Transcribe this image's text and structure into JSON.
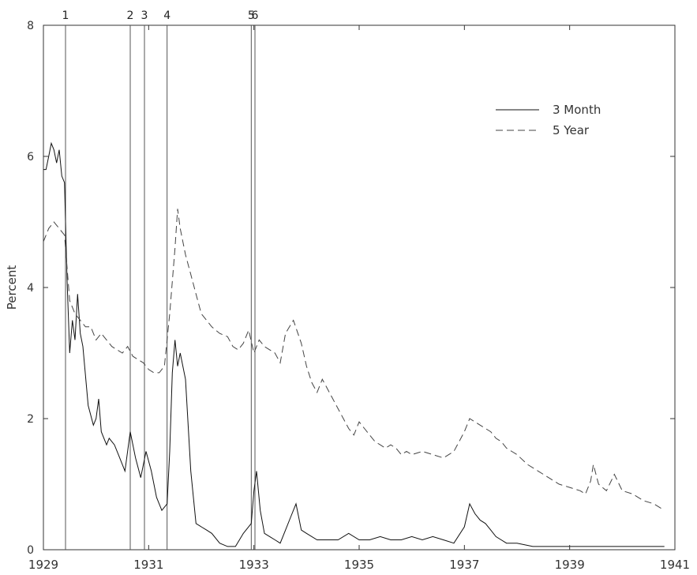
{
  "chart_data": {
    "type": "line",
    "title": "",
    "xlabel": "",
    "ylabel": "Percent",
    "xlim": [
      1929.0,
      1941.0
    ],
    "ylim": [
      0,
      8
    ],
    "x_tick_values": [
      1929,
      1931,
      1933,
      1935,
      1937,
      1939,
      1941
    ],
    "x_tick_labels": [
      "1929",
      "1931",
      "1933",
      "1935",
      "1937",
      "1939",
      "1941"
    ],
    "y_tick_values": [
      0,
      2,
      4,
      6,
      8
    ],
    "y_tick_labels": [
      "0",
      "2",
      "4",
      "6",
      "8"
    ],
    "legend": {
      "placement": "top-right",
      "entries": [
        "3 Month",
        "5 Year"
      ]
    },
    "event_markers": [
      {
        "label": "1",
        "x": 1929.42
      },
      {
        "label": "2",
        "x": 1930.65
      },
      {
        "label": "3",
        "x": 1930.92
      },
      {
        "label": "4",
        "x": 1931.35
      },
      {
        "label": "5",
        "x": 1932.95
      },
      {
        "label": "6",
        "x": 1933.02
      }
    ],
    "series": [
      {
        "name": "3 Month",
        "style": "solid",
        "points": [
          [
            1929.0,
            5.8
          ],
          [
            1929.05,
            5.8
          ],
          [
            1929.1,
            6.0
          ],
          [
            1929.15,
            6.2
          ],
          [
            1929.2,
            6.1
          ],
          [
            1929.25,
            5.9
          ],
          [
            1929.3,
            6.1
          ],
          [
            1929.35,
            5.7
          ],
          [
            1929.4,
            5.6
          ],
          [
            1929.45,
            4.1
          ],
          [
            1929.5,
            3.0
          ],
          [
            1929.55,
            3.5
          ],
          [
            1929.6,
            3.2
          ],
          [
            1929.65,
            3.9
          ],
          [
            1929.7,
            3.3
          ],
          [
            1929.75,
            3.1
          ],
          [
            1929.85,
            2.2
          ],
          [
            1929.95,
            1.9
          ],
          [
            1930.0,
            2.0
          ],
          [
            1930.05,
            2.3
          ],
          [
            1930.1,
            1.8
          ],
          [
            1930.2,
            1.6
          ],
          [
            1930.25,
            1.7
          ],
          [
            1930.35,
            1.6
          ],
          [
            1930.45,
            1.4
          ],
          [
            1930.55,
            1.2
          ],
          [
            1930.65,
            1.8
          ],
          [
            1930.75,
            1.4
          ],
          [
            1930.85,
            1.1
          ],
          [
            1930.95,
            1.5
          ],
          [
            1931.05,
            1.2
          ],
          [
            1931.15,
            0.8
          ],
          [
            1931.25,
            0.6
          ],
          [
            1931.35,
            0.7
          ],
          [
            1931.4,
            1.5
          ],
          [
            1931.45,
            2.7
          ],
          [
            1931.5,
            3.2
          ],
          [
            1931.55,
            2.8
          ],
          [
            1931.6,
            3.0
          ],
          [
            1931.7,
            2.6
          ],
          [
            1931.8,
            1.2
          ],
          [
            1931.9,
            0.4
          ],
          [
            1932.0,
            0.35
          ],
          [
            1932.1,
            0.3
          ],
          [
            1932.2,
            0.25
          ],
          [
            1932.35,
            0.1
          ],
          [
            1932.5,
            0.05
          ],
          [
            1932.65,
            0.05
          ],
          [
            1932.8,
            0.25
          ],
          [
            1932.95,
            0.4
          ],
          [
            1933.0,
            0.9
          ],
          [
            1933.05,
            1.2
          ],
          [
            1933.12,
            0.6
          ],
          [
            1933.2,
            0.25
          ],
          [
            1933.3,
            0.2
          ],
          [
            1933.4,
            0.15
          ],
          [
            1933.5,
            0.1
          ],
          [
            1933.6,
            0.3
          ],
          [
            1933.7,
            0.5
          ],
          [
            1933.8,
            0.7
          ],
          [
            1933.9,
            0.3
          ],
          [
            1934.0,
            0.25
          ],
          [
            1934.2,
            0.15
          ],
          [
            1934.4,
            0.15
          ],
          [
            1934.6,
            0.15
          ],
          [
            1934.8,
            0.25
          ],
          [
            1935.0,
            0.15
          ],
          [
            1935.2,
            0.15
          ],
          [
            1935.4,
            0.2
          ],
          [
            1935.6,
            0.15
          ],
          [
            1935.8,
            0.15
          ],
          [
            1936.0,
            0.2
          ],
          [
            1936.2,
            0.15
          ],
          [
            1936.4,
            0.2
          ],
          [
            1936.6,
            0.15
          ],
          [
            1936.8,
            0.1
          ],
          [
            1937.0,
            0.35
          ],
          [
            1937.1,
            0.7
          ],
          [
            1937.2,
            0.55
          ],
          [
            1937.3,
            0.45
          ],
          [
            1937.4,
            0.4
          ],
          [
            1937.5,
            0.3
          ],
          [
            1937.6,
            0.2
          ],
          [
            1937.8,
            0.1
          ],
          [
            1938.0,
            0.1
          ],
          [
            1938.3,
            0.05
          ],
          [
            1938.6,
            0.05
          ],
          [
            1938.9,
            0.05
          ],
          [
            1939.1,
            0.05
          ],
          [
            1939.4,
            0.05
          ],
          [
            1939.7,
            0.05
          ],
          [
            1940.0,
            0.05
          ],
          [
            1940.4,
            0.05
          ],
          [
            1940.8,
            0.05
          ]
        ]
      },
      {
        "name": "5 Year",
        "style": "dashed",
        "points": [
          [
            1929.0,
            4.7
          ],
          [
            1929.1,
            4.9
          ],
          [
            1929.2,
            5.0
          ],
          [
            1929.3,
            4.9
          ],
          [
            1929.4,
            4.8
          ],
          [
            1929.5,
            3.8
          ],
          [
            1929.6,
            3.6
          ],
          [
            1929.7,
            3.5
          ],
          [
            1929.8,
            3.4
          ],
          [
            1929.9,
            3.4
          ],
          [
            1930.0,
            3.2
          ],
          [
            1930.1,
            3.3
          ],
          [
            1930.2,
            3.2
          ],
          [
            1930.3,
            3.1
          ],
          [
            1930.4,
            3.05
          ],
          [
            1930.5,
            3.0
          ],
          [
            1930.6,
            3.1
          ],
          [
            1930.7,
            2.95
          ],
          [
            1930.8,
            2.9
          ],
          [
            1930.9,
            2.85
          ],
          [
            1931.0,
            2.75
          ],
          [
            1931.1,
            2.7
          ],
          [
            1931.2,
            2.7
          ],
          [
            1931.3,
            2.8
          ],
          [
            1931.4,
            3.6
          ],
          [
            1931.5,
            4.6
          ],
          [
            1931.55,
            5.2
          ],
          [
            1931.6,
            4.9
          ],
          [
            1931.7,
            4.5
          ],
          [
            1931.8,
            4.2
          ],
          [
            1931.9,
            3.9
          ],
          [
            1932.0,
            3.6
          ],
          [
            1932.1,
            3.5
          ],
          [
            1932.2,
            3.4
          ],
          [
            1932.35,
            3.3
          ],
          [
            1932.5,
            3.25
          ],
          [
            1932.6,
            3.1
          ],
          [
            1932.7,
            3.05
          ],
          [
            1932.8,
            3.15
          ],
          [
            1932.9,
            3.35
          ],
          [
            1933.0,
            3.0
          ],
          [
            1933.1,
            3.2
          ],
          [
            1933.2,
            3.1
          ],
          [
            1933.3,
            3.05
          ],
          [
            1933.4,
            3.0
          ],
          [
            1933.5,
            2.85
          ],
          [
            1933.6,
            3.3
          ],
          [
            1933.75,
            3.5
          ],
          [
            1933.9,
            3.15
          ],
          [
            1934.0,
            2.8
          ],
          [
            1934.1,
            2.55
          ],
          [
            1934.2,
            2.4
          ],
          [
            1934.3,
            2.6
          ],
          [
            1934.4,
            2.45
          ],
          [
            1934.5,
            2.3
          ],
          [
            1934.6,
            2.15
          ],
          [
            1934.7,
            2.0
          ],
          [
            1934.8,
            1.85
          ],
          [
            1934.9,
            1.75
          ],
          [
            1935.0,
            1.95
          ],
          [
            1935.1,
            1.85
          ],
          [
            1935.2,
            1.75
          ],
          [
            1935.3,
            1.65
          ],
          [
            1935.4,
            1.6
          ],
          [
            1935.5,
            1.55
          ],
          [
            1935.6,
            1.6
          ],
          [
            1935.7,
            1.55
          ],
          [
            1935.8,
            1.45
          ],
          [
            1935.9,
            1.5
          ],
          [
            1936.0,
            1.45
          ],
          [
            1936.2,
            1.5
          ],
          [
            1936.4,
            1.45
          ],
          [
            1936.6,
            1.4
          ],
          [
            1936.8,
            1.5
          ],
          [
            1937.0,
            1.8
          ],
          [
            1937.1,
            2.0
          ],
          [
            1937.2,
            1.95
          ],
          [
            1937.3,
            1.9
          ],
          [
            1937.4,
            1.85
          ],
          [
            1937.5,
            1.8
          ],
          [
            1937.6,
            1.7
          ],
          [
            1937.7,
            1.65
          ],
          [
            1937.8,
            1.55
          ],
          [
            1937.9,
            1.5
          ],
          [
            1938.0,
            1.45
          ],
          [
            1938.2,
            1.3
          ],
          [
            1938.4,
            1.2
          ],
          [
            1938.6,
            1.1
          ],
          [
            1938.8,
            1.0
          ],
          [
            1939.0,
            0.95
          ],
          [
            1939.2,
            0.9
          ],
          [
            1939.3,
            0.85
          ],
          [
            1939.4,
            1.05
          ],
          [
            1939.45,
            1.3
          ],
          [
            1939.55,
            1.0
          ],
          [
            1939.7,
            0.9
          ],
          [
            1939.85,
            1.15
          ],
          [
            1940.0,
            0.9
          ],
          [
            1940.2,
            0.85
          ],
          [
            1940.4,
            0.75
          ],
          [
            1940.6,
            0.7
          ],
          [
            1940.8,
            0.6
          ]
        ]
      }
    ]
  }
}
